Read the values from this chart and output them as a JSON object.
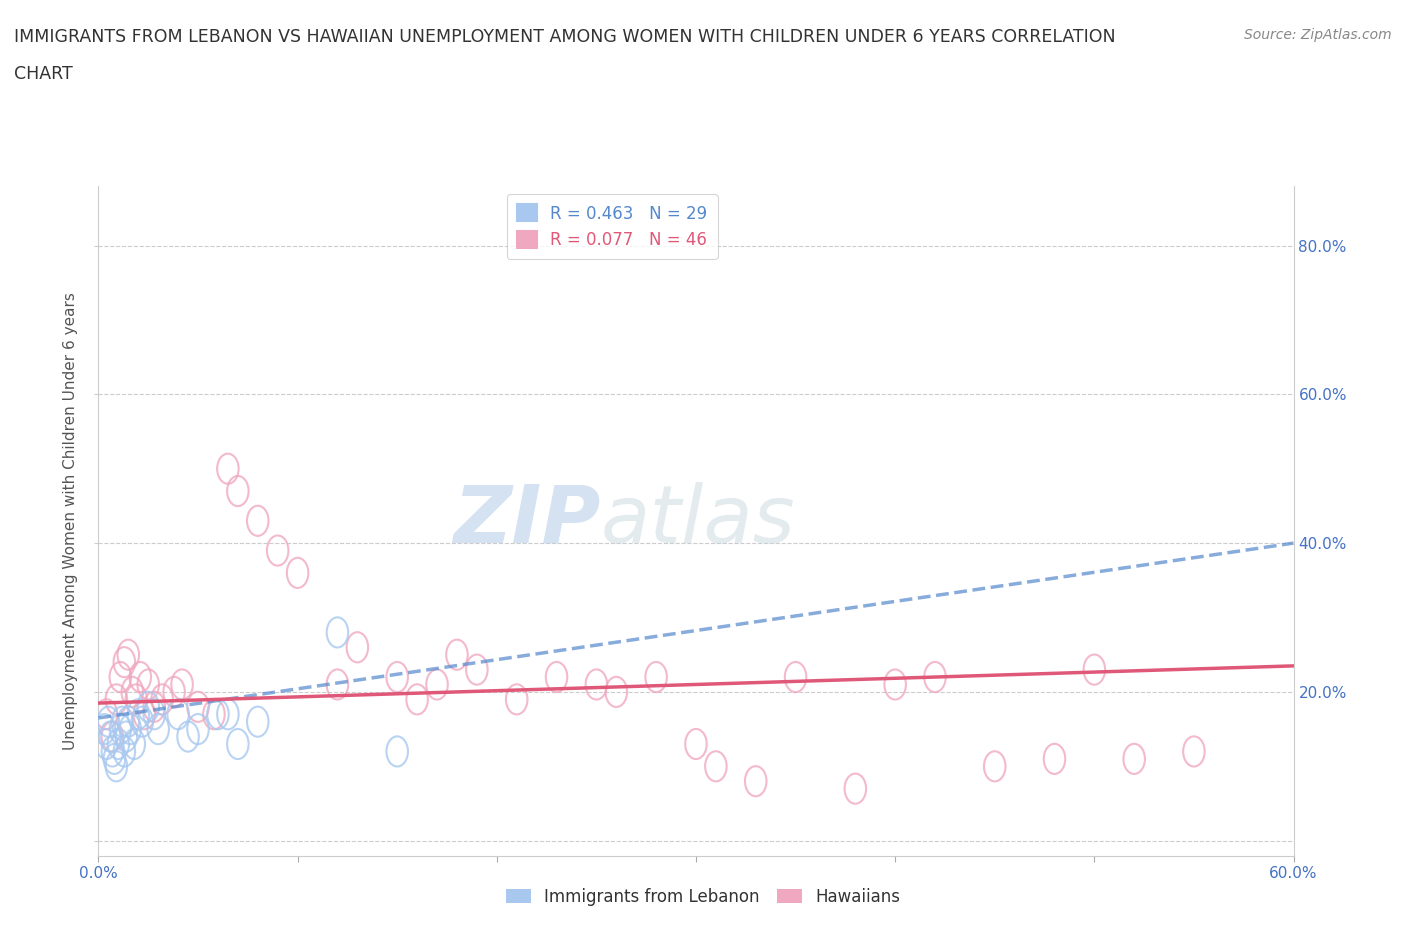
{
  "title_line1": "IMMIGRANTS FROM LEBANON VS HAWAIIAN UNEMPLOYMENT AMONG WOMEN WITH CHILDREN UNDER 6 YEARS CORRELATION",
  "title_line2": "CHART",
  "source": "Source: ZipAtlas.com",
  "ylabel": "Unemployment Among Women with Children Under 6 years",
  "xlim": [
    0.0,
    0.6
  ],
  "ylim": [
    -0.02,
    0.88
  ],
  "xticks": [
    0.0,
    0.1,
    0.2,
    0.3,
    0.4,
    0.5,
    0.6
  ],
  "xticklabels": [
    "0.0%",
    "",
    "",
    "",
    "",
    "",
    "60.0%"
  ],
  "yticks": [
    0.0,
    0.2,
    0.4,
    0.6,
    0.8
  ],
  "yticklabels_right": [
    "",
    "20.0%",
    "40.0%",
    "60.0%",
    "80.0%"
  ],
  "legend1_r": "0.463",
  "legend1_n": "29",
  "legend2_r": "0.077",
  "legend2_n": "46",
  "blue_scatter_color": "#a8c8f0",
  "pink_scatter_color": "#f0a8c0",
  "blue_line_color": "#5588cc",
  "pink_line_color": "#e05878",
  "tick_label_color": "#4472c4",
  "watermark_color": "#c8d8e8",
  "blue_scatter_x": [
    0.003,
    0.004,
    0.005,
    0.006,
    0.007,
    0.008,
    0.009,
    0.01,
    0.011,
    0.012,
    0.013,
    0.014,
    0.015,
    0.016,
    0.018,
    0.02,
    0.022,
    0.025,
    0.028,
    0.03,
    0.04,
    0.045,
    0.05,
    0.06,
    0.065,
    0.07,
    0.08,
    0.12,
    0.15
  ],
  "blue_scatter_y": [
    0.15,
    0.13,
    0.16,
    0.14,
    0.12,
    0.11,
    0.1,
    0.13,
    0.15,
    0.16,
    0.12,
    0.14,
    0.16,
    0.15,
    0.13,
    0.17,
    0.16,
    0.18,
    0.17,
    0.15,
    0.17,
    0.14,
    0.15,
    0.17,
    0.17,
    0.13,
    0.16,
    0.28,
    0.12
  ],
  "pink_scatter_x": [
    0.004,
    0.007,
    0.009,
    0.011,
    0.013,
    0.015,
    0.017,
    0.019,
    0.021,
    0.023,
    0.025,
    0.028,
    0.032,
    0.038,
    0.042,
    0.05,
    0.058,
    0.065,
    0.07,
    0.08,
    0.09,
    0.1,
    0.12,
    0.13,
    0.15,
    0.16,
    0.17,
    0.18,
    0.19,
    0.21,
    0.23,
    0.25,
    0.26,
    0.28,
    0.3,
    0.31,
    0.33,
    0.35,
    0.38,
    0.4,
    0.42,
    0.45,
    0.48,
    0.5,
    0.52,
    0.55
  ],
  "pink_scatter_y": [
    0.17,
    0.14,
    0.19,
    0.22,
    0.24,
    0.25,
    0.2,
    0.19,
    0.22,
    0.17,
    0.21,
    0.18,
    0.19,
    0.2,
    0.21,
    0.18,
    0.17,
    0.5,
    0.47,
    0.43,
    0.39,
    0.36,
    0.21,
    0.26,
    0.22,
    0.19,
    0.21,
    0.25,
    0.23,
    0.19,
    0.22,
    0.21,
    0.2,
    0.22,
    0.13,
    0.1,
    0.08,
    0.22,
    0.07,
    0.21,
    0.22,
    0.1,
    0.11,
    0.23,
    0.11,
    0.12
  ],
  "blue_trend_x": [
    0.0,
    0.6
  ],
  "blue_trend_y": [
    0.165,
    0.4
  ],
  "pink_trend_x": [
    0.0,
    0.6
  ],
  "pink_trend_y": [
    0.185,
    0.235
  ],
  "background_color": "#ffffff",
  "grid_color": "#cccccc"
}
